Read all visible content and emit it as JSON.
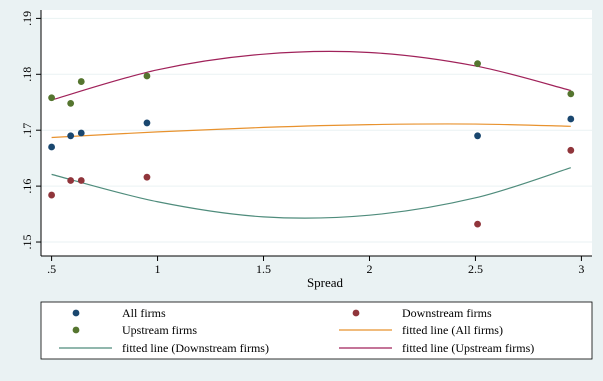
{
  "chart_data": {
    "type": "scatter",
    "title": "",
    "xlabel": "Spread",
    "ylabel": "",
    "xlim": [
      0.45,
      3.05
    ],
    "ylim": [
      0.1475,
      0.1915
    ],
    "xticks": [
      0.5,
      1,
      1.5,
      2,
      2.5,
      3
    ],
    "xtick_labels": [
      ".5",
      "1",
      "1.5",
      "2",
      "2.5",
      "3"
    ],
    "yticks": [
      0.15,
      0.16,
      0.17,
      0.18,
      0.19
    ],
    "ytick_labels": [
      ".15",
      ".16",
      ".17",
      ".18",
      ".19"
    ],
    "grid": "horizontal",
    "legend_position": "bottom",
    "series": [
      {
        "name": "All firms",
        "kind": "scatter",
        "color": "#1a476f",
        "x": [
          0.5,
          0.59,
          0.64,
          0.95,
          2.51,
          2.95
        ],
        "y": [
          0.167,
          0.169,
          0.1695,
          0.1713,
          0.169,
          0.172
        ]
      },
      {
        "name": "Downstream firms",
        "kind": "scatter",
        "color": "#90353b",
        "x": [
          0.5,
          0.59,
          0.64,
          0.95,
          2.51,
          2.95
        ],
        "y": [
          0.1584,
          0.161,
          0.161,
          0.1616,
          0.1532,
          0.1664
        ]
      },
      {
        "name": "Upstream firms",
        "kind": "scatter",
        "color": "#55752f",
        "x": [
          0.5,
          0.59,
          0.64,
          0.95,
          2.51,
          2.95
        ],
        "y": [
          0.1758,
          0.1748,
          0.1787,
          0.1797,
          0.1819,
          0.1765
        ]
      },
      {
        "name": "fitted line (All firms)",
        "kind": "line",
        "color": "#e8922e",
        "x": [
          0.5,
          1.0,
          1.5,
          2.0,
          2.5,
          2.95
        ],
        "y": [
          0.1687,
          0.1697,
          0.1705,
          0.171,
          0.1711,
          0.1707
        ]
      },
      {
        "name": "fitted line (Downstream firms)",
        "kind": "line",
        "color": "#4f8c7c",
        "x": [
          0.5,
          1.0,
          1.5,
          2.0,
          2.5,
          2.95
        ],
        "y": [
          0.1621,
          0.1572,
          0.1545,
          0.1548,
          0.1579,
          0.1633
        ]
      },
      {
        "name": "fitted line (Upstream firms)",
        "kind": "line",
        "color": "#a0225a",
        "x": [
          0.5,
          1.0,
          1.5,
          2.0,
          2.5,
          2.95
        ],
        "y": [
          0.1754,
          0.1808,
          0.1836,
          0.1839,
          0.1815,
          0.1771
        ]
      }
    ],
    "legend": [
      "All firms",
      "Downstream firms",
      "Upstream firms",
      "fitted line (All firms)",
      "fitted line (Downstream firms)",
      "fitted line (Upstream firms)"
    ]
  },
  "colors": {
    "background": "#eaf2f3",
    "plot_background": "#ffffff",
    "grid": "#eaf2f3"
  }
}
